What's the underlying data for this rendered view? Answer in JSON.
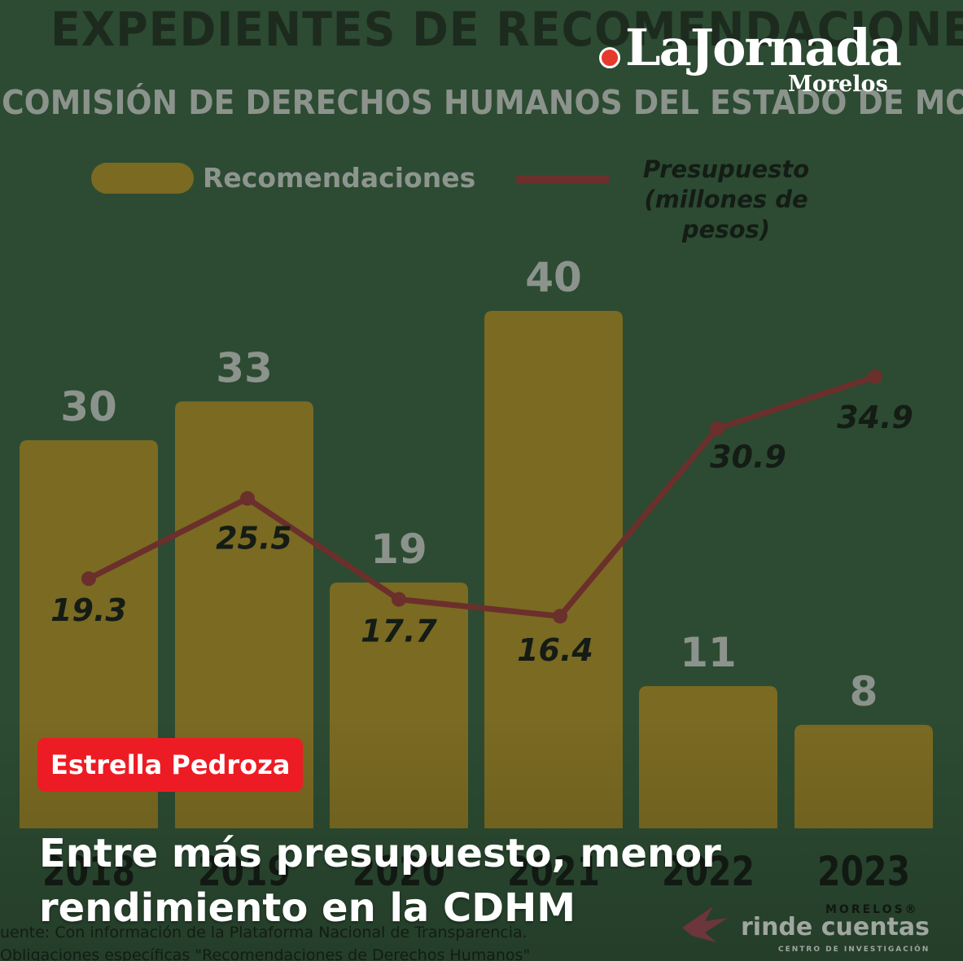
{
  "brand": {
    "name": "LaJornada",
    "edition": "Morelos"
  },
  "chart_data": {
    "type": "bar",
    "title": "EXPEDIENTES DE RECOMENDACIONES",
    "subtitle": "COMISIÓN DE DERECHOS HUMANOS DEL ESTADO DE MORELOS",
    "categories": [
      "2018",
      "2019",
      "2020",
      "2021",
      "2022",
      "2023"
    ],
    "series": [
      {
        "name": "Recomendaciones",
        "kind": "bar",
        "color": "#7a6a22",
        "values": [
          30,
          33,
          19,
          40,
          11,
          8
        ]
      },
      {
        "name": "Presupuesto (millones de pesos)",
        "kind": "line",
        "color": "#6b2f2c",
        "values": [
          19.3,
          25.5,
          17.7,
          16.4,
          30.9,
          34.9
        ]
      }
    ],
    "legend": {
      "placement": "top",
      "bar_label": "Recomendaciones",
      "line_label_1": "Presupuesto",
      "line_label_2": "(millones de pesos)"
    },
    "bar_labels": [
      "30",
      "33",
      "19",
      "40",
      "11",
      "8"
    ],
    "line_labels": [
      "19.3",
      "25.5",
      "17.7",
      "16.4",
      "30.9",
      "34.9"
    ],
    "y_bar_range": [
      0,
      40
    ],
    "y_line_range": [
      0,
      40
    ]
  },
  "author": "Estrella Pedroza",
  "headline": "Entre más presupuesto, menor rendimiento en la CDHM",
  "source": {
    "line1": "uente: Con información de la Plataforma Nacional de Transparencia.",
    "line2": "Obligaciones específicas \"Recomendaciones de Derechos Humanos\""
  },
  "partner": {
    "top": "MORELOS®",
    "name": "rinde cuentas",
    "sub": "CENTRO DE INVESTIGACIÓN"
  }
}
